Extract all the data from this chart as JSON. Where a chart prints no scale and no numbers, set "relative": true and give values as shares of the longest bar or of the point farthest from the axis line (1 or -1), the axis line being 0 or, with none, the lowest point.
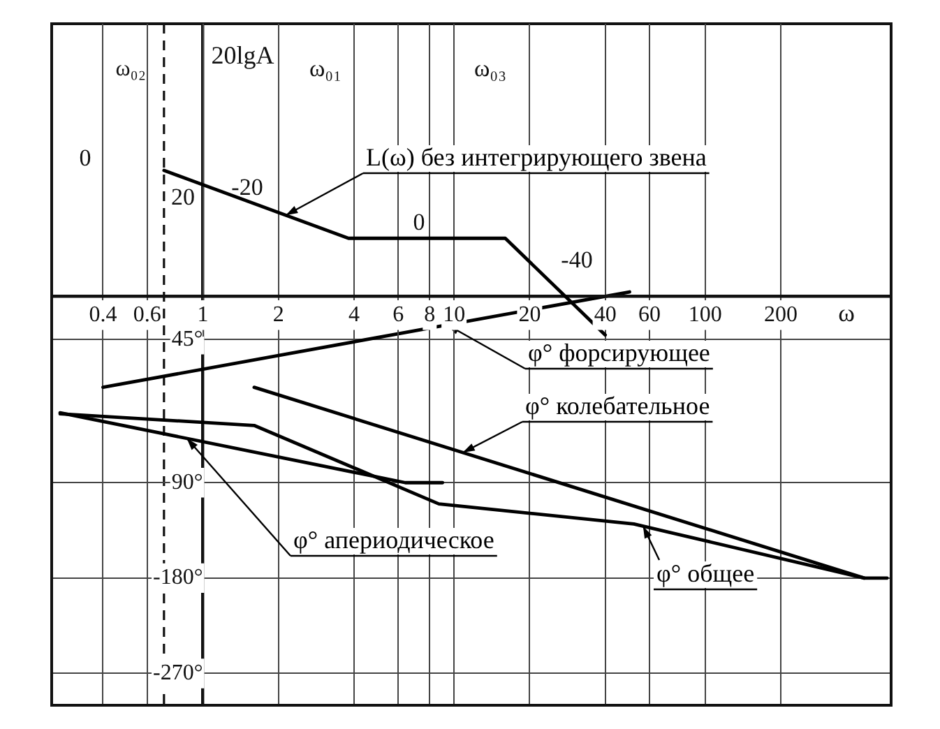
{
  "chart_data": [
    {
      "type": "line",
      "xlabel": "ω",
      "ylabel": "20lgA",
      "relative": true,
      "series": [
        {
          "name": "L(ω) без интегрирующего звена",
          "color": "#000000",
          "x": [
            0.7,
            3.8,
            16,
            40
          ],
          "values": [
            1,
            0.46,
            0.46,
            -0.31
          ]
        }
      ],
      "log": "x",
      "xlim": [
        0.25,
        550
      ],
      "xticks": [
        0.4,
        0.6,
        1,
        2,
        4,
        6,
        8,
        10,
        20,
        40,
        60,
        100,
        200
      ],
      "annotations": [
        "20",
        "ω₀₁",
        "ω₀₃",
        "0",
        "-20",
        "0",
        "-40"
      ],
      "grid": "x",
      "marker": "none",
      "line_style": "solid"
    },
    {
      "type": "line",
      "series": [
        {
          "name": "φ° форсирующее",
          "color": "#000000",
          "x": [
            0.4,
            50
          ],
          "values": [
            0,
            90
          ]
        },
        {
          "name": "φ° колебательное",
          "color": "#000000",
          "x": [
            1.6,
            430
          ],
          "values": [
            0,
            -180
          ]
        },
        {
          "name": "φ° общее",
          "color": "#000000",
          "x": [
            0.27,
            1.6,
            8.7,
            52,
            430,
            530
          ],
          "values": [
            -25,
            -36,
            -110,
            -129,
            -180,
            -180
          ]
        },
        {
          "name": "φ° апериодическое",
          "color": "#000000",
          "x": [
            0.27,
            6.4,
            9
          ],
          "values": [
            -24,
            -90,
            -90
          ]
        }
      ],
      "log": "x",
      "xlim": [
        0.25,
        550
      ],
      "xticks": [
        0.4,
        0.6,
        1,
        2,
        4,
        6,
        8,
        10,
        20,
        40,
        60,
        100,
        200
      ],
      "tick_labels": "y",
      "ylim": [
        -300,
        343
      ],
      "yticks": [
        {
          "value": 45,
          "label": "45°"
        },
        {
          "value": -90,
          "label": "90°"
        },
        {
          "value": -180,
          "label": "-180°"
        },
        {
          "value": -270,
          "label": "-270°"
        }
      ],
      "ref_lines": [
        {
          "axis": "x",
          "value": 0.7,
          "label": "ω₀₂",
          "line_style": "dashed"
        }
      ],
      "grid": true,
      "marker": "none",
      "line_style": "solid"
    }
  ]
}
